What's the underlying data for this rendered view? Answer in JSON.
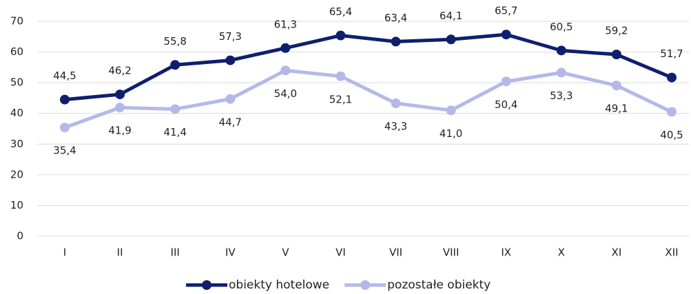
{
  "chart_data": {
    "type": "line",
    "categories": [
      "I",
      "II",
      "III",
      "IV",
      "V",
      "VI",
      "VII",
      "VIII",
      "IX",
      "X",
      "XI",
      "XII"
    ],
    "series": [
      {
        "name": "obiekty hotelowe",
        "color": "#0f1f6e",
        "values": [
          44.5,
          46.2,
          55.8,
          57.3,
          61.3,
          65.4,
          63.4,
          64.1,
          65.7,
          60.5,
          59.2,
          51.7
        ],
        "value_labels": [
          "44,5",
          "46,2",
          "55,8",
          "57,3",
          "61,3",
          "65,4",
          "63,4",
          "64,1",
          "65,7",
          "60,5",
          "59,2",
          "51,7"
        ]
      },
      {
        "name": "pozostałe obiekty",
        "color": "#b4b8e9",
        "values": [
          35.4,
          41.9,
          41.4,
          44.7,
          54.0,
          52.1,
          43.3,
          41.0,
          50.4,
          53.3,
          49.1,
          40.5
        ],
        "value_labels": [
          "35,4",
          "41,9",
          "41,4",
          "44,7",
          "54,0",
          "52,1",
          "43,3",
          "41,0",
          "50,4",
          "53,3",
          "49,1",
          "40,5"
        ]
      }
    ],
    "ylim": [
      0,
      70
    ],
    "yticks": [
      0,
      10,
      20,
      30,
      40,
      50,
      60,
      70
    ],
    "grid": true,
    "legend": "bottom"
  }
}
